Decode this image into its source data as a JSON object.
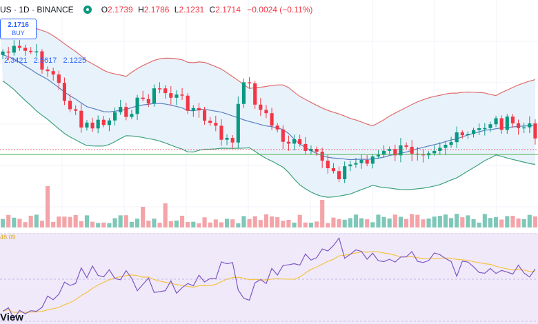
{
  "header": {
    "symbol": "US · 1D · BINANCE",
    "o_label": "O",
    "o_value": "2.1739",
    "h_label": "H",
    "h_value": "2.1786",
    "l_label": "L",
    "l_value": "2.1231",
    "c_label": "C",
    "c_value": "2.1714",
    "change": "−0.0024 (−0.11%)"
  },
  "buy_box": {
    "price": "2.1716",
    "label": "BUY"
  },
  "bollinger": {
    "basis": "2.3421",
    "upper": "2.5617",
    "lower": "2.1225"
  },
  "rsi": {
    "value": "48.09"
  },
  "logo": "View",
  "colors": {
    "up": "#089981",
    "down": "#f23645",
    "bb_upper": "#e06b6b",
    "bb_basis": "#5a7fc0",
    "bb_lower": "#3aa07a",
    "bb_fill": "#e8f2fb",
    "rsi_line": "#7e57c2",
    "rsi_ma": "#f5c342",
    "rsi_bg": "#efe9fa",
    "price_line": "#4caf50"
  }
}
